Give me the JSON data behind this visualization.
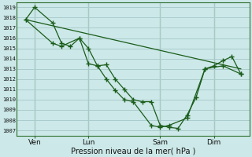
{
  "bg_color": "#cce8e8",
  "grid_color": "#aacccc",
  "line_color": "#1a5c1a",
  "marker_color": "#1a5c1a",
  "xlabel": "Pression niveau de la mer( hPa )",
  "ylim": [
    1006.5,
    1019.5
  ],
  "yticks": [
    1007,
    1008,
    1009,
    1010,
    1011,
    1012,
    1013,
    1014,
    1015,
    1016,
    1017,
    1018,
    1019
  ],
  "day_labels": [
    "Ven",
    "Lun",
    "Sam",
    "Dim"
  ],
  "day_positions": [
    1,
    4,
    8,
    11
  ],
  "vline_positions": [
    1,
    4,
    8,
    11
  ],
  "xlim": [
    0,
    13
  ],
  "series1": {
    "x": [
      0.5,
      1.0,
      2.0,
      2.5,
      3.0,
      3.5,
      4.0,
      4.5,
      5.0,
      5.5,
      6.0,
      6.5,
      7.0,
      7.5,
      8.0,
      8.5,
      9.0,
      9.5,
      10.0,
      10.5,
      11.0,
      11.5,
      12.0,
      12.5
    ],
    "y": [
      1017.8,
      1019.0,
      1017.5,
      1015.5,
      1015.2,
      1016.0,
      1015.0,
      1013.3,
      1013.4,
      1012.0,
      1011.0,
      1010.0,
      1009.8,
      1009.8,
      1007.5,
      1007.3,
      1007.2,
      1008.5,
      1010.2,
      1013.0,
      1013.3,
      1013.8,
      1014.2,
      1012.5
    ]
  },
  "series2": {
    "x": [
      0.5,
      2.0,
      2.5,
      3.5,
      4.0,
      4.5,
      5.0,
      5.5,
      6.0,
      6.5,
      7.5,
      8.0,
      8.5,
      9.5,
      10.5,
      11.5,
      12.5
    ],
    "y": [
      1017.8,
      1015.5,
      1015.2,
      1016.0,
      1013.5,
      1013.3,
      1012.0,
      1010.9,
      1010.0,
      1009.8,
      1007.5,
      1007.3,
      1007.5,
      1008.2,
      1013.0,
      1013.3,
      1012.5
    ]
  },
  "series3": {
    "x": [
      0.5,
      12.5
    ],
    "y": [
      1017.8,
      1013.0
    ]
  }
}
